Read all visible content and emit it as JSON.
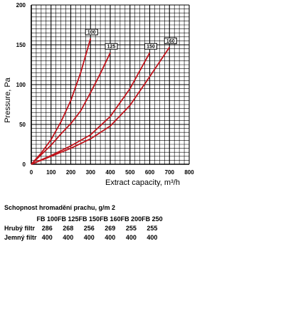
{
  "chart_data": {
    "type": "line",
    "title": "",
    "xlabel": "Extract capacity, m³/h",
    "ylabel": "Pressure, Pa",
    "xlim": [
      0,
      800
    ],
    "ylim": [
      0,
      200
    ],
    "x_ticks": [
      "0",
      "100",
      "200",
      "300",
      "400",
      "500",
      "600",
      "700",
      "800"
    ],
    "y_ticks": [
      "0",
      "50",
      "100",
      "150",
      "200"
    ],
    "grid": true,
    "line_color": "#c0141c",
    "series": [
      {
        "name": "100",
        "x": [
          0,
          50,
          100,
          150,
          200,
          250,
          300
        ],
        "y": [
          0,
          14,
          31,
          53,
          80,
          115,
          158
        ]
      },
      {
        "name": "125",
        "x": [
          0,
          50,
          100,
          150,
          200,
          250,
          300,
          350,
          400
        ],
        "y": [
          0,
          12,
          24,
          38,
          51,
          67,
          90,
          114,
          140
        ]
      },
      {
        "name": "150",
        "x": [
          0,
          100,
          200,
          300,
          400,
          500,
          600
        ],
        "y": [
          0,
          11,
          23,
          37,
          60,
          95,
          140
        ]
      },
      {
        "name": "160",
        "x": [
          0,
          100,
          200,
          300,
          400,
          500,
          600,
          700
        ],
        "y": [
          0,
          10,
          20,
          32,
          48,
          74,
          110,
          147
        ]
      }
    ]
  },
  "table": {
    "title": "Schopnost hromadění prachu, g/m 2",
    "columns": [
      "FB 100",
      "FB 125",
      "FB 150",
      "FB 160",
      "FB 200",
      "FB 250"
    ],
    "rows": [
      {
        "label": "Hrubý filtr",
        "values": [
          "286",
          "268",
          "256",
          "269",
          "255",
          "255"
        ]
      },
      {
        "label": "Jemný filtr",
        "values": [
          "400",
          "400",
          "400",
          "400",
          "400",
          "400"
        ]
      }
    ]
  }
}
